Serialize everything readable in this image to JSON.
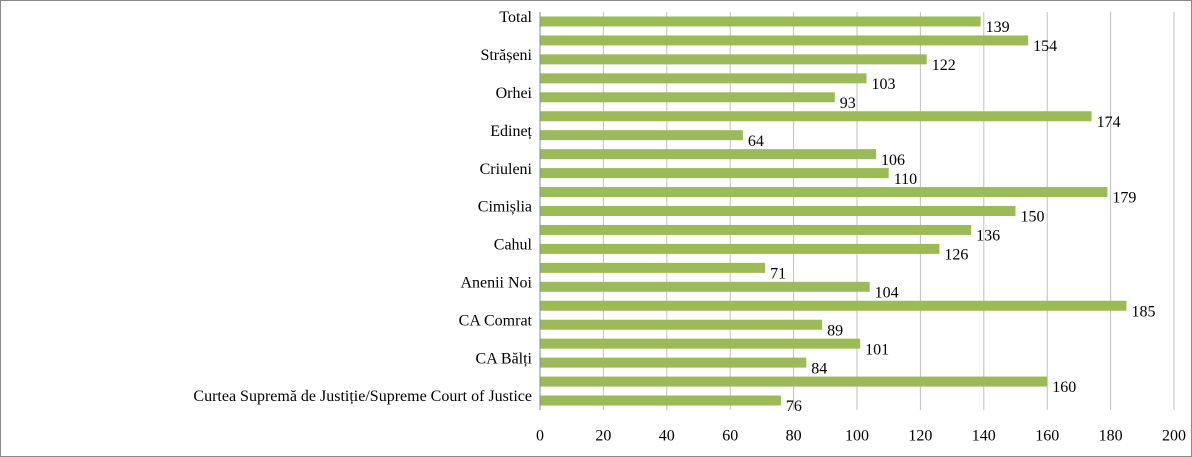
{
  "chart_data": {
    "type": "hbar",
    "categories": [
      "Total",
      null,
      "Strășeni",
      null,
      "Orhei",
      null,
      "Edineț",
      null,
      "Criuleni",
      null,
      "Cimișlia",
      null,
      "Cahul",
      null,
      "Anenii Noi",
      null,
      "CA Comrat",
      null,
      "CA Bălți",
      null,
      "Curtea Supremă de Justiție/Supreme Court of Justice"
    ],
    "values": [
      139,
      154,
      122,
      103,
      93,
      174,
      64,
      106,
      110,
      179,
      150,
      136,
      126,
      71,
      104,
      185,
      89,
      101,
      84,
      160,
      76
    ],
    "color": "#9bbb59",
    "xlim": [
      0,
      200
    ],
    "xticks": [
      0,
      20,
      40,
      60,
      80,
      100,
      120,
      140,
      160,
      180,
      200
    ],
    "grid": true
  }
}
